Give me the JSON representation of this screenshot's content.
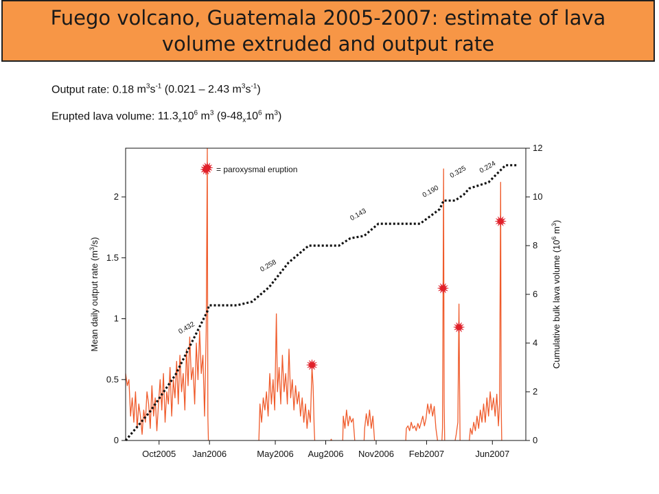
{
  "slide": {
    "title_line1": "Fuego volcano, Guatemala 2005-2007:  estimate of lava",
    "title_line2": "volume extruded and output rate",
    "colors": {
      "title_bg": "#f79646",
      "series": "#ef5a2a",
      "star": "#e0202a",
      "cumulative": "#111111"
    }
  },
  "info": {
    "output_rate": {
      "label": "Output rate:",
      "value": "0.18",
      "unit": "m",
      "exp1": "3",
      "s": "s",
      "exp2": "-1",
      "range_open": "(0.021 – 2.43 m",
      "range_exp1": "3",
      "range_s": "s",
      "range_exp2": "-1",
      "range_close": ")"
    },
    "volume": {
      "label": "Erupted lava volume:",
      "value": "11.3",
      "x": "x",
      "base": "10",
      "exp": "6",
      "unit": "m",
      "unit_exp": "3",
      "range_open": "(9-48",
      "range_x": "x",
      "range_base": "10",
      "range_exp": "6",
      "range_unit": "m",
      "range_unit_exp": "3",
      "range_close": ")"
    }
  },
  "chart_data": {
    "type": "line",
    "x_range": [
      "2005-08-01",
      "2007-08-01"
    ],
    "x_ticks": [
      {
        "label": "Oct2005",
        "date": "2005-10-01"
      },
      {
        "label": "Jan2006",
        "date": "2006-01-01"
      },
      {
        "label": "May2006",
        "date": "2006-05-01"
      },
      {
        "label": "Aug2006",
        "date": "2006-08-01"
      },
      {
        "label": "Nov2006",
        "date": "2006-11-01"
      },
      {
        "label": "Feb2007",
        "date": "2007-02-01"
      },
      {
        "label": "Jun2007",
        "date": "2007-06-01"
      }
    ],
    "y_left": {
      "label": "Mean daily output rate (m",
      "label_exp": "3",
      "label_end": "/s)",
      "range": [
        0,
        2.4
      ],
      "ticks": [
        0,
        0.5,
        1,
        1.5,
        2
      ],
      "tick_labels": [
        "0",
        "0.5",
        "1",
        "1.5",
        "2"
      ]
    },
    "y_right": {
      "label": "Cumulative bulk lava volume (10",
      "label_exp1": "6",
      "label_mid": " m",
      "label_exp2": "3",
      "label_end": ")",
      "range": [
        0,
        12
      ],
      "ticks": [
        0,
        2,
        4,
        6,
        8,
        10,
        12
      ],
      "tick_labels": [
        "0",
        "2",
        "4",
        "6",
        "8",
        "10",
        "12"
      ]
    },
    "legend": {
      "label": "= paroxysmal eruption",
      "position": "top-left"
    },
    "series": [
      {
        "axis": "left",
        "style": "solid",
        "segments": [
          [
            [
              "2005-08-01",
              0.55
            ],
            [
              "2005-08-04",
              0.45
            ],
            [
              "2005-08-07",
              0.5
            ],
            [
              "2005-08-10",
              0.2
            ],
            [
              "2005-08-13",
              0.35
            ],
            [
              "2005-08-16",
              0.15
            ],
            [
              "2005-08-19",
              0.4
            ],
            [
              "2005-08-22",
              0.1
            ],
            [
              "2005-08-25",
              0.3
            ],
            [
              "2005-08-28",
              0.2
            ],
            [
              "2005-08-31",
              0.05
            ],
            [
              "2005-09-03",
              0.25
            ],
            [
              "2005-09-06",
              0.15
            ],
            [
              "2005-09-09",
              0.4
            ],
            [
              "2005-09-12",
              0.3
            ],
            [
              "2005-09-15",
              0.1
            ],
            [
              "2005-09-18",
              0.45
            ],
            [
              "2005-09-21",
              0.2
            ],
            [
              "2005-09-24",
              0.35
            ],
            [
              "2005-09-27",
              0.08
            ],
            [
              "2005-09-30",
              0.3
            ],
            [
              "2005-10-03",
              0.5
            ],
            [
              "2005-10-06",
              0.25
            ],
            [
              "2005-10-09",
              0.55
            ],
            [
              "2005-10-12",
              0.15
            ],
            [
              "2005-10-15",
              0.4
            ],
            [
              "2005-10-18",
              0.3
            ],
            [
              "2005-10-21",
              0.6
            ],
            [
              "2005-10-24",
              0.2
            ],
            [
              "2005-10-27",
              0.5
            ],
            [
              "2005-10-30",
              0.35
            ],
            [
              "2005-11-02",
              0.65
            ],
            [
              "2005-11-05",
              0.3
            ],
            [
              "2005-11-08",
              0.7
            ],
            [
              "2005-11-11",
              0.4
            ],
            [
              "2005-11-14",
              0.55
            ],
            [
              "2005-11-17",
              0.25
            ],
            [
              "2005-11-20",
              0.75
            ],
            [
              "2005-11-23",
              0.45
            ],
            [
              "2005-11-26",
              0.85
            ],
            [
              "2005-11-29",
              0.5
            ],
            [
              "2005-12-02",
              0.6
            ],
            [
              "2005-12-05",
              0.3
            ],
            [
              "2005-12-08",
              0.8
            ],
            [
              "2005-12-11",
              0.5
            ],
            [
              "2005-12-14",
              0.9
            ],
            [
              "2005-12-17",
              0.55
            ],
            [
              "2005-12-20",
              0.7
            ],
            [
              "2005-12-23",
              0.2
            ],
            [
              "2005-12-26",
              0.9
            ],
            [
              "2005-12-28",
              2.43
            ],
            [
              "2005-12-29",
              0.2
            ],
            [
              "2005-12-30",
              0.0
            ]
          ],
          [
            [
              "2006-04-01",
              0.0
            ],
            [
              "2006-04-03",
              0.3
            ],
            [
              "2006-04-06",
              0.15
            ],
            [
              "2006-04-09",
              0.35
            ],
            [
              "2006-04-12",
              0.25
            ],
            [
              "2006-04-15",
              0.4
            ],
            [
              "2006-04-18",
              0.2
            ],
            [
              "2006-04-21",
              0.55
            ],
            [
              "2006-04-24",
              0.3
            ],
            [
              "2006-04-27",
              0.5
            ],
            [
              "2006-04-30",
              0.25
            ],
            [
              "2006-05-03",
              1.04
            ],
            [
              "2006-05-05",
              0.4
            ],
            [
              "2006-05-08",
              0.6
            ],
            [
              "2006-05-11",
              0.3
            ],
            [
              "2006-05-14",
              0.7
            ],
            [
              "2006-05-17",
              0.4
            ],
            [
              "2006-05-20",
              0.55
            ],
            [
              "2006-05-23",
              0.3
            ],
            [
              "2006-05-26",
              0.75
            ],
            [
              "2006-05-29",
              0.35
            ],
            [
              "2006-06-01",
              0.5
            ],
            [
              "2006-06-04",
              0.25
            ],
            [
              "2006-06-07",
              0.45
            ],
            [
              "2006-06-10",
              0.3
            ],
            [
              "2006-06-13",
              0.4
            ],
            [
              "2006-06-16",
              0.2
            ],
            [
              "2006-06-19",
              0.35
            ],
            [
              "2006-06-22",
              0.15
            ],
            [
              "2006-06-25",
              0.3
            ],
            [
              "2006-06-28",
              0.1
            ],
            [
              "2006-07-01",
              0.25
            ],
            [
              "2006-07-04",
              0.15
            ],
            [
              "2006-07-07",
              0.6
            ],
            [
              "2006-07-09",
              0.45
            ],
            [
              "2006-07-11",
              0.1
            ],
            [
              "2006-07-12",
              0.0
            ]
          ],
          [
            [
              "2006-08-10",
              0.0
            ],
            [
              "2006-08-11",
              0.01
            ],
            [
              "2006-08-12",
              0.0
            ]
          ],
          [
            [
              "2006-09-01",
              0.0
            ],
            [
              "2006-09-02",
              0.2
            ],
            [
              "2006-09-05",
              0.1
            ],
            [
              "2006-09-08",
              0.25
            ],
            [
              "2006-09-11",
              0.12
            ],
            [
              "2006-09-14",
              0.2
            ],
            [
              "2006-09-17",
              0.15
            ],
            [
              "2006-09-20",
              0.18
            ],
            [
              "2006-09-23",
              0.0
            ]
          ],
          [
            [
              "2006-10-10",
              0.0
            ],
            [
              "2006-10-11",
              0.1
            ],
            [
              "2006-10-14",
              0.22
            ],
            [
              "2006-10-17",
              0.12
            ],
            [
              "2006-10-20",
              0.25
            ],
            [
              "2006-10-23",
              0.1
            ],
            [
              "2006-10-26",
              0.2
            ],
            [
              "2006-10-29",
              0.0
            ]
          ],
          [
            [
              "2006-12-25",
              0.0
            ],
            [
              "2006-12-26",
              0.1
            ],
            [
              "2006-12-29",
              0.12
            ],
            [
              "2007-01-01",
              0.08
            ],
            [
              "2007-01-04",
              0.15
            ],
            [
              "2007-01-07",
              0.1
            ],
            [
              "2007-01-10",
              0.12
            ],
            [
              "2007-01-13",
              0.08
            ],
            [
              "2007-01-16",
              0.14
            ],
            [
              "2007-01-19",
              0.1
            ],
            [
              "2007-01-22",
              0.15
            ],
            [
              "2007-01-25",
              0.2
            ],
            [
              "2007-01-28",
              0.12
            ],
            [
              "2007-01-31",
              0.18
            ],
            [
              "2007-02-03",
              0.3
            ],
            [
              "2007-02-06",
              0.22
            ],
            [
              "2007-02-09",
              0.3
            ],
            [
              "2007-02-12",
              0.2
            ],
            [
              "2007-02-15",
              0.28
            ],
            [
              "2007-02-18",
              0.1
            ],
            [
              "2007-02-21",
              0.0
            ]
          ],
          [
            [
              "2007-03-01",
              0.0
            ],
            [
              "2007-03-02",
              0.1
            ],
            [
              "2007-03-04",
              2.23
            ],
            [
              "2007-03-05",
              0.3
            ],
            [
              "2007-03-06",
              0.0
            ]
          ],
          [
            [
              "2007-03-25",
              0.0
            ],
            [
              "2007-03-27",
              0.05
            ],
            [
              "2007-03-30",
              0.15
            ],
            [
              "2007-04-01",
              1.12
            ],
            [
              "2007-04-02",
              0.5
            ],
            [
              "2007-04-03",
              0.0
            ]
          ],
          [
            [
              "2007-04-20",
              0.0
            ],
            [
              "2007-04-22",
              0.1
            ],
            [
              "2007-04-25",
              0.05
            ],
            [
              "2007-04-28",
              0.15
            ],
            [
              "2007-05-01",
              0.08
            ],
            [
              "2007-05-04",
              0.2
            ],
            [
              "2007-05-07",
              0.1
            ],
            [
              "2007-05-10",
              0.25
            ],
            [
              "2007-05-13",
              0.15
            ],
            [
              "2007-05-16",
              0.3
            ],
            [
              "2007-05-19",
              0.15
            ],
            [
              "2007-05-22",
              0.35
            ],
            [
              "2007-05-25",
              0.2
            ],
            [
              "2007-05-28",
              0.4
            ],
            [
              "2007-05-31",
              0.25
            ],
            [
              "2007-06-03",
              0.35
            ],
            [
              "2007-06-06",
              0.2
            ],
            [
              "2007-06-09",
              0.38
            ],
            [
              "2007-06-12",
              0.12
            ],
            [
              "2007-06-14",
              0.3
            ],
            [
              "2007-06-16",
              2.12
            ],
            [
              "2007-06-17",
              0.3
            ],
            [
              "2007-06-18",
              0.0
            ]
          ]
        ]
      },
      {
        "axis": "right",
        "style": "dotted",
        "points": [
          [
            "2005-08-01",
            0.0
          ],
          [
            "2005-09-15",
            1.2
          ],
          [
            "2005-10-31",
            2.7
          ],
          [
            "2005-12-28",
            5.3
          ],
          [
            "2005-12-31",
            5.55
          ],
          [
            "2006-02-20",
            5.55
          ],
          [
            "2006-03-20",
            5.7
          ],
          [
            "2006-04-20",
            6.3
          ],
          [
            "2006-05-25",
            7.3
          ],
          [
            "2006-07-01",
            8.0
          ],
          [
            "2006-08-25",
            8.0
          ],
          [
            "2006-09-15",
            8.3
          ],
          [
            "2006-10-10",
            8.4
          ],
          [
            "2006-11-05",
            8.9
          ],
          [
            "2007-01-20",
            8.9
          ],
          [
            "2007-02-25",
            9.5
          ],
          [
            "2007-03-04",
            9.85
          ],
          [
            "2007-03-25",
            9.85
          ],
          [
            "2007-04-10",
            10.1
          ],
          [
            "2007-04-20",
            10.35
          ],
          [
            "2007-05-25",
            10.6
          ],
          [
            "2007-06-16",
            11.1
          ],
          [
            "2007-06-25",
            11.3
          ],
          [
            "2007-07-15",
            11.3
          ]
        ]
      }
    ],
    "annotations": [
      {
        "text": "0.432",
        "date": "2005-11-22",
        "y": 4.55,
        "axis": "right"
      },
      {
        "text": "0.258",
        "date": "2006-04-20",
        "y": 7.1,
        "axis": "right"
      },
      {
        "text": "0.143",
        "date": "2006-10-01",
        "y": 9.2,
        "axis": "right"
      },
      {
        "text": "0.190",
        "date": "2007-02-10",
        "y": 10.15,
        "axis": "right"
      },
      {
        "text": "0.325",
        "date": "2007-04-01",
        "y": 10.95,
        "axis": "right"
      },
      {
        "text": "0.224",
        "date": "2007-05-25",
        "y": 11.15,
        "axis": "right"
      }
    ],
    "eruption_markers": [
      {
        "date": "2005-12-28",
        "y": 2.24
      },
      {
        "date": "2006-07-07",
        "y": 0.62
      },
      {
        "date": "2007-03-03",
        "y": 1.25
      },
      {
        "date": "2007-04-01",
        "y": 0.93
      },
      {
        "date": "2007-06-16",
        "y": 1.8
      }
    ]
  }
}
